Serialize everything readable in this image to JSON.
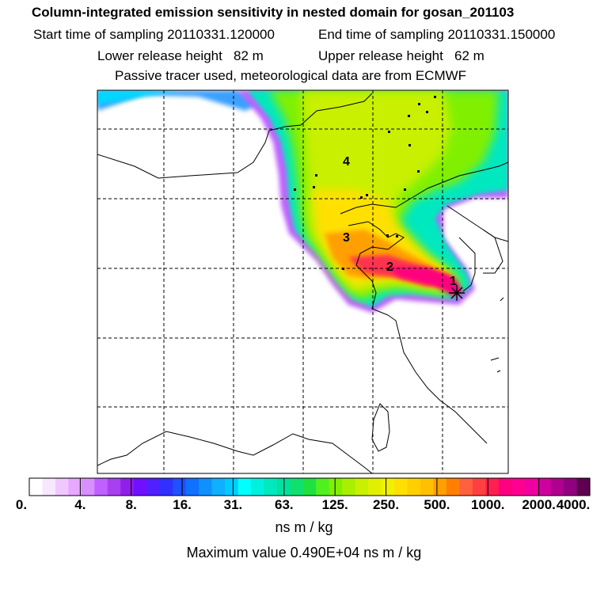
{
  "header": {
    "title": "Column-integrated emission sensitivity in nested domain for gosan_201103",
    "start_time": "Start time of sampling 20110331.120000",
    "end_time": "End time of sampling 20110331.150000",
    "lower_height": "Lower release height   82 m",
    "upper_height": "Upper release height   62 m",
    "tracer_note": "Passive tracer used, meteorological data are from ECMWF"
  },
  "map": {
    "markers": [
      "1",
      "2",
      "3",
      "4"
    ],
    "receptor_symbol": "star-icon"
  },
  "colorbar": {
    "tick_labels": [
      "0.",
      "4.",
      "8.",
      "16.",
      "31.",
      "63.",
      "125.",
      "250.",
      "500.",
      "1000.",
      "2000.",
      "4000."
    ],
    "colors": [
      "#ffffff",
      "#f8e8ff",
      "#f0c8ff",
      "#e8a8ff",
      "#d890ff",
      "#c060ff",
      "#a840f0",
      "#9020e8",
      "#7010ff",
      "#5020ff",
      "#3030ff",
      "#2050ff",
      "#1070ff",
      "#1090ff",
      "#10b0ff",
      "#00ccff",
      "#00ffff",
      "#00f0e0",
      "#00e8c0",
      "#00e0a0",
      "#10e070",
      "#20e040",
      "#50f020",
      "#80f000",
      "#a8f000",
      "#c8f000",
      "#e0f000",
      "#f0f000",
      "#ffe000",
      "#ffd000",
      "#ffc000",
      "#ffa000",
      "#ff8000",
      "#ff6040",
      "#ff4040",
      "#ff2050",
      "#ff0080",
      "#ff0090",
      "#f000a0",
      "#d000a0",
      "#b00090",
      "#900080",
      "#600050"
    ],
    "units": "ns m / kg",
    "maximum": "Maximum value  0.490E+04 ns m / kg"
  }
}
